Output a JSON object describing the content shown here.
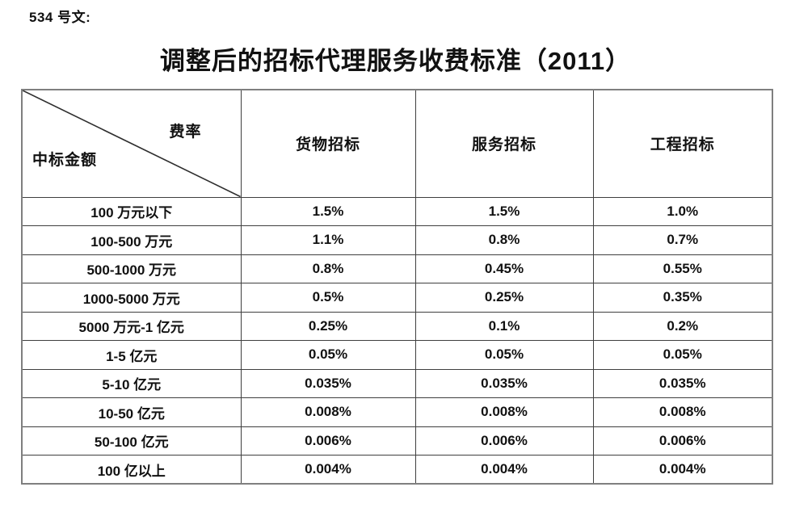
{
  "doc": {
    "reference": "534 号文:",
    "title": "调整后的招标代理服务收费标准（2011）"
  },
  "table": {
    "corner": {
      "top_right_label": "费率",
      "bottom_left_label": "中标金额"
    },
    "columns": [
      "货物招标",
      "服务招标",
      "工程招标"
    ],
    "rows": [
      {
        "label": "100 万元以下",
        "values": [
          "1.5%",
          "1.5%",
          "1.0%"
        ]
      },
      {
        "label": "100-500 万元",
        "values": [
          "1.1%",
          "0.8%",
          "0.7%"
        ]
      },
      {
        "label": "500-1000 万元",
        "values": [
          "0.8%",
          "0.45%",
          "0.55%"
        ]
      },
      {
        "label": "1000-5000 万元",
        "values": [
          "0.5%",
          "0.25%",
          "0.35%"
        ]
      },
      {
        "label": "5000 万元-1 亿元",
        "values": [
          "0.25%",
          "0.1%",
          "0.2%"
        ]
      },
      {
        "label": "1-5 亿元",
        "values": [
          "0.05%",
          "0.05%",
          "0.05%"
        ]
      },
      {
        "label": "5-10 亿元",
        "values": [
          "0.035%",
          "0.035%",
          "0.035%"
        ]
      },
      {
        "label": "10-50 亿元",
        "values": [
          "0.008%",
          "0.008%",
          "0.008%"
        ]
      },
      {
        "label": "50-100 亿元",
        "values": [
          "0.006%",
          "0.006%",
          "0.006%"
        ]
      },
      {
        "label": "100 亿以上",
        "values": [
          "0.004%",
          "0.004%",
          "0.004%"
        ]
      }
    ]
  },
  "colors": {
    "text": "#111111",
    "outer_border": "#7f7f7f",
    "inner_border": "#3f3f3f",
    "background": "#ffffff"
  }
}
